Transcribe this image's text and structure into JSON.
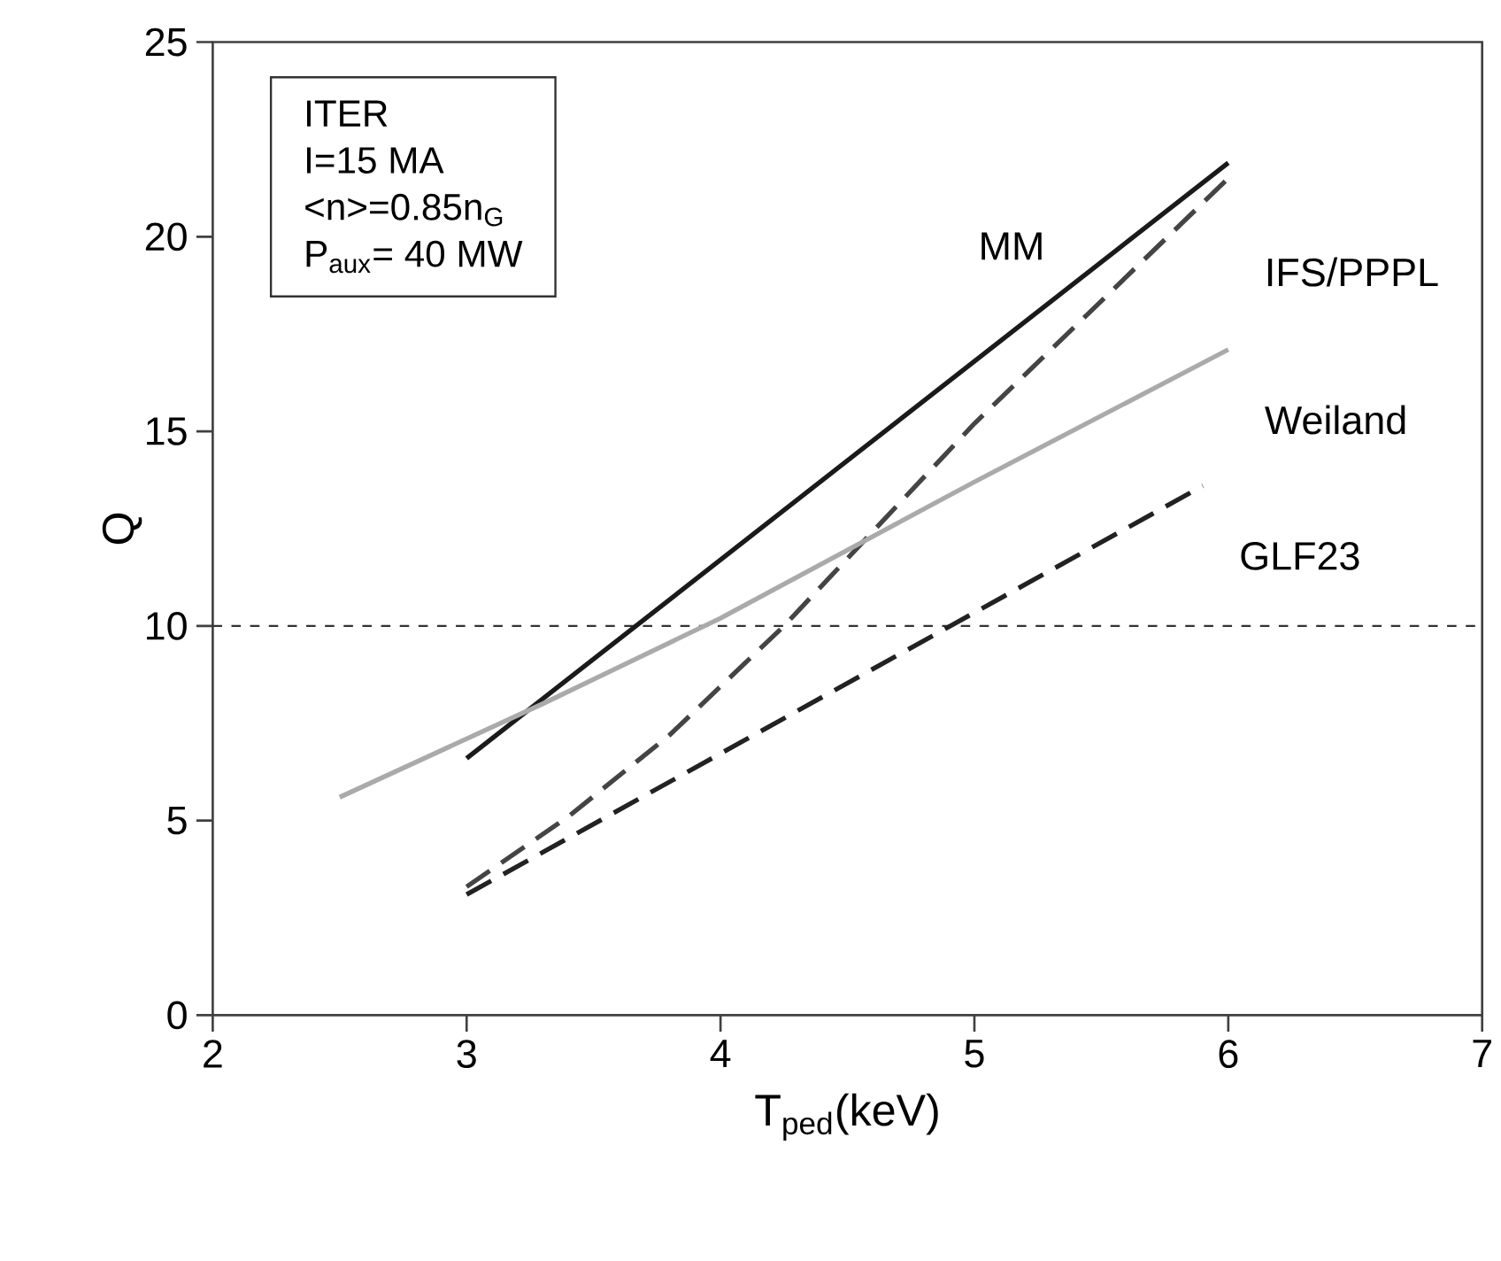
{
  "chart_data": {
    "type": "line",
    "xlabel": "T$_{ped}$(keV)",
    "ylabel": "Q",
    "xlim": [
      2,
      7
    ],
    "ylim": [
      0,
      25
    ],
    "xticks": [
      2,
      3,
      4,
      5,
      6,
      7
    ],
    "yticks": [
      0,
      5,
      10,
      15,
      20,
      25
    ],
    "grid": false,
    "annotations": [
      "ITER",
      "I=15 MA",
      "<n>=0.85n$_{G}$",
      "P$_{aux}$= 40 MW"
    ],
    "ref_lines": [
      {
        "axis": "y",
        "value": 10,
        "color": "#333333",
        "line_style": "dotted"
      }
    ],
    "series": [
      {
        "name": "MM",
        "color": "#1a1a1a",
        "line_style": "solid",
        "x": [
          3,
          6
        ],
        "values": [
          6.6,
          21.9
        ]
      },
      {
        "name": "IFS/PPPL",
        "color": "#444444",
        "line_style": "dashed",
        "x": [
          3,
          3.4,
          3.8,
          4.25,
          5,
          6
        ],
        "values": [
          3.3,
          5.1,
          7.2,
          10,
          15.2,
          21.5
        ]
      },
      {
        "name": "Weiland",
        "color": "#aaaaaa",
        "line_style": "solid",
        "x": [
          2.5,
          3.3,
          4,
          5,
          6
        ],
        "values": [
          5.6,
          8.0,
          10.2,
          13.7,
          17.1
        ]
      },
      {
        "name": "GLF23",
        "color": "#222222",
        "line_style": "dashed",
        "x": [
          3,
          5.9
        ],
        "values": [
          3.1,
          13.6
        ]
      }
    ]
  }
}
